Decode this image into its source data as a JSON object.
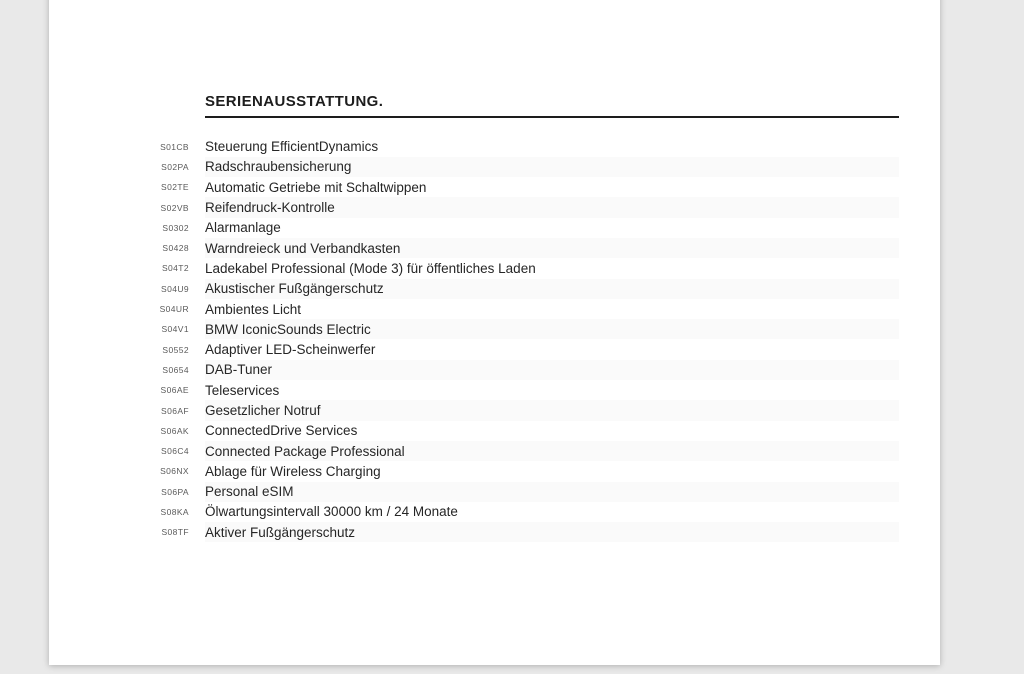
{
  "document": {
    "title": "SERIENAUSSTATTUNG.",
    "items": [
      {
        "code": "S01CB",
        "label": "Steuerung EfficientDynamics"
      },
      {
        "code": "S02PA",
        "label": "Radschraubensicherung"
      },
      {
        "code": "S02TE",
        "label": "Automatic Getriebe mit Schaltwippen"
      },
      {
        "code": "S02VB",
        "label": "Reifendruck-Kontrolle"
      },
      {
        "code": "S0302",
        "label": "Alarmanlage"
      },
      {
        "code": "S0428",
        "label": "Warndreieck und Verbandkasten"
      },
      {
        "code": "S04T2",
        "label": "Ladekabel Professional (Mode 3) für öffentliches Laden"
      },
      {
        "code": "S04U9",
        "label": "Akustischer Fußgängerschutz"
      },
      {
        "code": "S04UR",
        "label": "Ambientes Licht"
      },
      {
        "code": "S04V1",
        "label": "BMW IconicSounds Electric"
      },
      {
        "code": "S0552",
        "label": "Adaptiver LED-Scheinwerfer"
      },
      {
        "code": "S0654",
        "label": "DAB-Tuner"
      },
      {
        "code": "S06AE",
        "label": "Teleservices"
      },
      {
        "code": "S06AF",
        "label": "Gesetzlicher Notruf"
      },
      {
        "code": "S06AK",
        "label": "ConnectedDrive Services"
      },
      {
        "code": "S06C4",
        "label": "Connected Package Professional"
      },
      {
        "code": "S06NX",
        "label": "Ablage für Wireless Charging"
      },
      {
        "code": "S06PA",
        "label": "Personal eSIM"
      },
      {
        "code": "S08KA",
        "label": "Ölwartungsintervall 30000 km / 24 Monate"
      },
      {
        "code": "S08TF",
        "label": "Aktiver Fußgängerschutz"
      }
    ]
  },
  "colors": {
    "canvas_bg": "#e9e9e9",
    "page_bg": "#ffffff",
    "row_stripe": "#fafafa",
    "title_text": "#1d1d1d",
    "code_text": "#5a5a5a",
    "label_text": "#262626",
    "rule": "#1d1d1d"
  }
}
